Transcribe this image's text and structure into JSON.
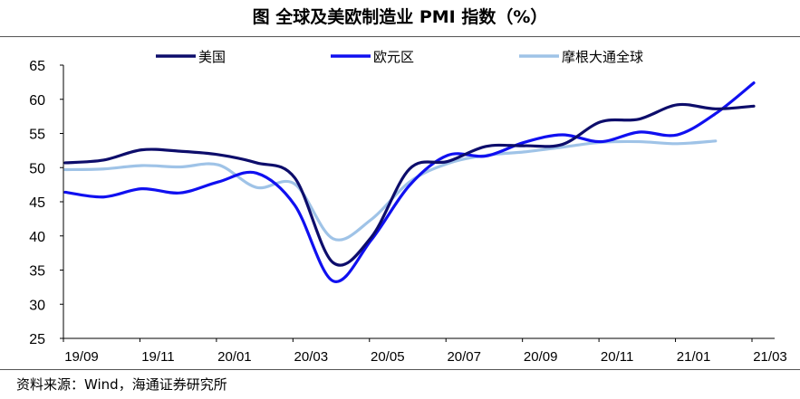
{
  "title": "图  全球及美欧制造业 PMI 指数（%）",
  "source": "资料来源：Wind，海通证券研究所",
  "chart_data": {
    "type": "line",
    "title": "图  全球及美欧制造业 PMI 指数（%）",
    "xlabel": "",
    "ylabel": "",
    "ylim": [
      25,
      65
    ],
    "yticks": [
      25,
      30,
      35,
      40,
      45,
      50,
      55,
      60,
      65
    ],
    "xtick_labels": [
      "19/09",
      "19/11",
      "20/01",
      "20/03",
      "20/05",
      "20/07",
      "20/09",
      "20/11",
      "21/01",
      "21/03"
    ],
    "x": [
      "19/09",
      "19/10",
      "19/11",
      "19/12",
      "20/01",
      "20/02",
      "20/03",
      "20/04",
      "20/05",
      "20/06",
      "20/07",
      "20/08",
      "20/09",
      "20/10",
      "20/11",
      "20/12",
      "21/01",
      "21/02",
      "21/03"
    ],
    "legend_position": "top",
    "grid": false,
    "series": [
      {
        "name": "美国",
        "color": "#0d0d6b",
        "values": [
          50.7,
          51.1,
          52.6,
          52.4,
          51.9,
          50.7,
          48.5,
          36.1,
          39.8,
          49.8,
          50.9,
          53.1,
          53.2,
          53.4,
          56.7,
          57.1,
          59.2,
          58.6,
          59.0
        ]
      },
      {
        "name": "欧元区",
        "color": "#1010f0",
        "values": [
          46.4,
          45.7,
          46.9,
          46.3,
          47.9,
          49.2,
          44.5,
          33.4,
          39.4,
          47.4,
          51.8,
          51.7,
          53.7,
          54.8,
          53.8,
          55.2,
          54.8,
          57.9,
          62.4
        ]
      },
      {
        "name": "摩根大通全球",
        "color": "#9fc3e7",
        "values": [
          49.7,
          49.8,
          50.3,
          50.1,
          50.4,
          47.1,
          47.6,
          39.6,
          42.4,
          47.9,
          50.6,
          51.8,
          52.3,
          53.0,
          53.7,
          53.8,
          53.5,
          53.9,
          null
        ]
      }
    ]
  }
}
